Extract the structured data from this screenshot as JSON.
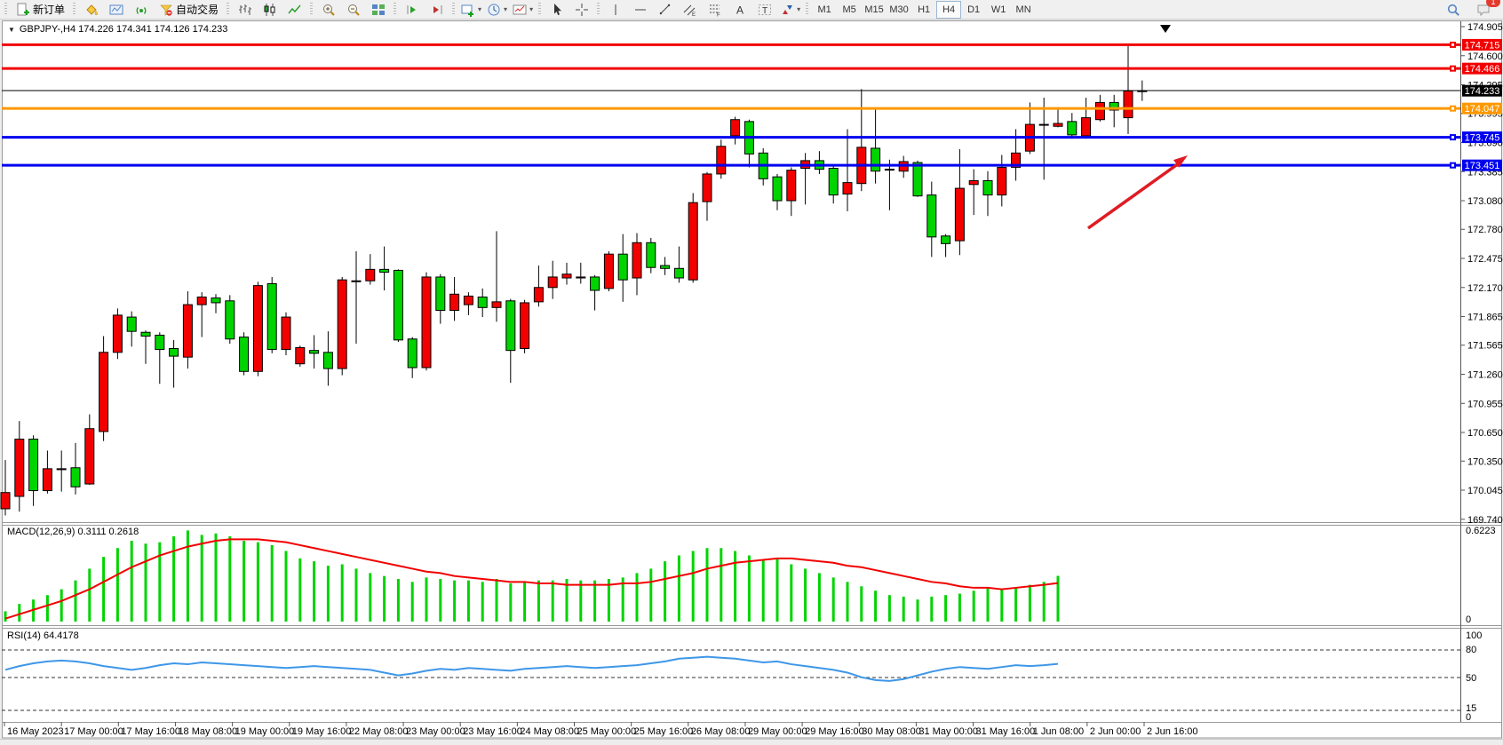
{
  "toolbar": {
    "new_order_label": "新订单",
    "auto_trading_label": "自动交易",
    "timeframes": [
      "M1",
      "M5",
      "M15",
      "M30",
      "H1",
      "H4",
      "D1",
      "W1",
      "MN"
    ],
    "active_timeframe": "H4",
    "notification_count": "1"
  },
  "chart": {
    "collapse_arrow": "▼",
    "title": "GBPJPY-,H4  174.226 174.341 174.126 174.233"
  },
  "chart_data": {
    "type": "candlestick",
    "symbol": "GBPJPY-",
    "period": "H4",
    "last_bar": {
      "open": "174.226",
      "high": "174.341",
      "low": "174.126",
      "close": "174.233"
    },
    "up_color": "#f20000",
    "down_color": "#00d400",
    "ylim": [
      169.6,
      174.905
    ],
    "price_ticks": [
      "174.905",
      "174.600",
      "174.295",
      "173.995",
      "173.690",
      "173.385",
      "173.080",
      "172.780",
      "172.475",
      "172.170",
      "171.865",
      "171.565",
      "171.260",
      "170.955",
      "170.650",
      "170.350",
      "170.045",
      "169.740"
    ],
    "time_labels": [
      "16 May 2023",
      "17 May 00:00",
      "17 May 16:00",
      "18 May 08:00",
      "19 May 00:00",
      "19 May 16:00",
      "22 May 08:00",
      "23 May 00:00",
      "23 May 16:00",
      "24 May 08:00",
      "25 May 00:00",
      "25 May 16:00",
      "26 May 08:00",
      "29 May 00:00",
      "29 May 16:00",
      "30 May 08:00",
      "31 May 00:00",
      "31 May 16:00",
      "1 Jun 08:00",
      "2 Jun 00:00",
      "2 Jun 16:00"
    ],
    "levels": [
      {
        "value": 174.715,
        "label": "174.715",
        "color": "#f20000"
      },
      {
        "value": 174.466,
        "label": "174.466",
        "color": "#f20000"
      },
      {
        "value": 174.047,
        "label": "174.047",
        "color": "#ff9800"
      },
      {
        "value": 173.745,
        "label": "173.745",
        "color": "#0000f0"
      },
      {
        "value": 173.451,
        "label": "173.451",
        "color": "#0000f0"
      }
    ],
    "current_price": {
      "value": 174.233,
      "label": "174.233",
      "color": "#000000"
    },
    "candles": [
      [
        169.85,
        170.36,
        169.78,
        170.02
      ],
      [
        169.98,
        170.77,
        169.82,
        170.58
      ],
      [
        170.58,
        170.62,
        169.88,
        170.04
      ],
      [
        170.04,
        170.46,
        170.01,
        170.27
      ],
      [
        170.26,
        170.46,
        170.03,
        170.27
      ],
      [
        170.28,
        170.54,
        170.0,
        170.08
      ],
      [
        170.11,
        170.84,
        170.1,
        170.69
      ],
      [
        170.66,
        171.66,
        170.56,
        171.49
      ],
      [
        171.49,
        171.95,
        171.42,
        171.88
      ],
      [
        171.86,
        171.92,
        171.55,
        171.71
      ],
      [
        171.7,
        171.72,
        171.37,
        171.66
      ],
      [
        171.67,
        171.7,
        171.16,
        171.52
      ],
      [
        171.53,
        171.62,
        171.12,
        171.45
      ],
      [
        171.44,
        172.13,
        171.32,
        171.99
      ],
      [
        171.99,
        172.12,
        171.65,
        172.07
      ],
      [
        172.06,
        172.1,
        171.9,
        172.01
      ],
      [
        172.03,
        172.09,
        171.58,
        171.63
      ],
      [
        171.65,
        171.7,
        171.25,
        171.29
      ],
      [
        171.29,
        172.23,
        171.24,
        172.19
      ],
      [
        172.21,
        172.28,
        171.48,
        171.52
      ],
      [
        171.52,
        171.91,
        171.46,
        171.86
      ],
      [
        171.37,
        171.56,
        171.34,
        171.54
      ],
      [
        171.51,
        171.67,
        171.32,
        171.48
      ],
      [
        171.49,
        171.71,
        171.14,
        171.32
      ],
      [
        171.32,
        172.28,
        171.25,
        172.25
      ],
      [
        172.24,
        172.55,
        171.58,
        172.24
      ],
      [
        172.24,
        172.52,
        172.2,
        172.36
      ],
      [
        172.36,
        172.6,
        172.14,
        172.33
      ],
      [
        172.35,
        172.36,
        171.6,
        171.62
      ],
      [
        171.63,
        171.65,
        171.22,
        171.33
      ],
      [
        171.33,
        172.33,
        171.3,
        172.28
      ],
      [
        172.28,
        172.31,
        171.79,
        171.93
      ],
      [
        171.93,
        172.28,
        171.82,
        172.1
      ],
      [
        171.99,
        172.12,
        171.88,
        172.08
      ],
      [
        172.07,
        172.16,
        171.86,
        171.96
      ],
      [
        171.96,
        172.76,
        171.81,
        172.02
      ],
      [
        172.03,
        172.05,
        171.17,
        171.51
      ],
      [
        171.53,
        172.04,
        171.48,
        172.01
      ],
      [
        172.02,
        172.4,
        171.97,
        172.17
      ],
      [
        172.17,
        172.45,
        172.05,
        172.28
      ],
      [
        172.27,
        172.43,
        172.2,
        172.31
      ],
      [
        172.27,
        172.43,
        172.21,
        172.28
      ],
      [
        172.28,
        172.3,
        171.93,
        172.14
      ],
      [
        172.16,
        172.55,
        172.13,
        172.52
      ],
      [
        172.52,
        172.73,
        172.02,
        172.25
      ],
      [
        172.27,
        172.74,
        172.09,
        172.64
      ],
      [
        172.64,
        172.69,
        172.32,
        172.38
      ],
      [
        172.4,
        172.49,
        172.3,
        172.37
      ],
      [
        172.37,
        172.6,
        172.22,
        172.27
      ],
      [
        172.25,
        173.16,
        172.22,
        173.06
      ],
      [
        173.07,
        173.38,
        172.87,
        173.36
      ],
      [
        173.36,
        173.72,
        173.31,
        173.65
      ],
      [
        173.76,
        173.96,
        173.67,
        173.93
      ],
      [
        173.91,
        173.93,
        173.43,
        173.57
      ],
      [
        173.58,
        173.63,
        173.24,
        173.31
      ],
      [
        173.33,
        173.36,
        172.98,
        173.08
      ],
      [
        173.08,
        173.43,
        172.92,
        173.4
      ],
      [
        173.42,
        173.58,
        173.04,
        173.5
      ],
      [
        173.5,
        173.6,
        173.36,
        173.41
      ],
      [
        173.42,
        173.44,
        173.05,
        173.14
      ],
      [
        173.15,
        173.83,
        172.97,
        173.27
      ],
      [
        173.26,
        174.25,
        173.18,
        173.64
      ],
      [
        173.63,
        174.05,
        173.26,
        173.39
      ],
      [
        173.41,
        173.51,
        172.98,
        173.41
      ],
      [
        173.39,
        173.55,
        173.32,
        173.49
      ],
      [
        173.48,
        173.5,
        173.12,
        173.13
      ],
      [
        173.14,
        173.28,
        172.49,
        172.7
      ],
      [
        172.71,
        172.73,
        172.49,
        172.63
      ],
      [
        172.66,
        173.62,
        172.51,
        173.21
      ],
      [
        173.25,
        173.41,
        172.93,
        173.29
      ],
      [
        173.29,
        173.39,
        172.92,
        173.14
      ],
      [
        173.14,
        173.56,
        173.02,
        173.43
      ],
      [
        173.43,
        173.83,
        173.29,
        173.58
      ],
      [
        173.6,
        174.11,
        173.57,
        173.88
      ],
      [
        173.88,
        174.16,
        173.3,
        173.88
      ],
      [
        173.86,
        174.06,
        173.85,
        173.89
      ],
      [
        173.91,
        174.0,
        173.73,
        173.77
      ],
      [
        173.76,
        174.16,
        173.73,
        173.95
      ],
      [
        173.93,
        174.19,
        173.91,
        174.11
      ],
      [
        174.11,
        174.19,
        173.85,
        174.03
      ],
      [
        173.95,
        174.7,
        173.78,
        174.23
      ],
      [
        174.226,
        174.341,
        174.126,
        174.233
      ]
    ],
    "indicators": {
      "macd": {
        "label": "MACD(12,26,9) 0.3111 0.2618",
        "params": "12,26,9",
        "main_value": "0.3111",
        "signal_value": "0.2618",
        "scale_max": "0.6223",
        "scale_min": "0",
        "histogram_color": "#00d400",
        "signal_color": "#f20000",
        "histogram": [
          0.07,
          0.12,
          0.15,
          0.18,
          0.22,
          0.28,
          0.36,
          0.44,
          0.5,
          0.55,
          0.53,
          0.54,
          0.58,
          0.62,
          0.59,
          0.6,
          0.58,
          0.55,
          0.54,
          0.52,
          0.48,
          0.43,
          0.41,
          0.38,
          0.39,
          0.36,
          0.33,
          0.31,
          0.29,
          0.27,
          0.3,
          0.29,
          0.28,
          0.28,
          0.27,
          0.29,
          0.26,
          0.27,
          0.28,
          0.28,
          0.29,
          0.28,
          0.28,
          0.29,
          0.3,
          0.33,
          0.36,
          0.41,
          0.45,
          0.48,
          0.5,
          0.5,
          0.48,
          0.45,
          0.42,
          0.43,
          0.39,
          0.36,
          0.33,
          0.3,
          0.27,
          0.24,
          0.21,
          0.18,
          0.17,
          0.15,
          0.17,
          0.18,
          0.19,
          0.21,
          0.23,
          0.22,
          0.23,
          0.25,
          0.27,
          0.3111
        ],
        "signal": [
          0.02,
          0.05,
          0.08,
          0.11,
          0.14,
          0.18,
          0.22,
          0.27,
          0.32,
          0.37,
          0.41,
          0.45,
          0.48,
          0.51,
          0.53,
          0.55,
          0.56,
          0.56,
          0.56,
          0.55,
          0.54,
          0.52,
          0.5,
          0.48,
          0.46,
          0.44,
          0.42,
          0.4,
          0.38,
          0.36,
          0.34,
          0.33,
          0.31,
          0.3,
          0.29,
          0.28,
          0.27,
          0.27,
          0.26,
          0.26,
          0.25,
          0.25,
          0.25,
          0.25,
          0.26,
          0.26,
          0.27,
          0.29,
          0.31,
          0.33,
          0.36,
          0.38,
          0.4,
          0.41,
          0.42,
          0.43,
          0.43,
          0.42,
          0.41,
          0.4,
          0.38,
          0.37,
          0.35,
          0.33,
          0.31,
          0.29,
          0.27,
          0.26,
          0.24,
          0.23,
          0.23,
          0.22,
          0.23,
          0.24,
          0.25,
          0.2618
        ]
      },
      "rsi": {
        "label": "RSI(14) 64.4178",
        "period": "14",
        "value": "64.4178",
        "line_color": "#3e97e8",
        "ticks": [
          "100",
          "80",
          "50",
          "15",
          "0"
        ],
        "dashed_levels": [
          80,
          50,
          15
        ],
        "values": [
          58,
          62,
          65,
          67,
          68,
          67,
          65,
          62,
          60,
          58,
          60,
          63,
          65,
          64,
          66,
          65,
          64,
          63,
          62,
          61,
          60,
          61,
          62,
          61,
          60,
          59,
          58,
          55,
          52,
          54,
          57,
          59,
          58,
          60,
          59,
          58,
          57,
          59,
          60,
          61,
          62,
          61,
          60,
          61,
          62,
          63,
          65,
          67,
          70,
          71,
          72,
          71,
          70,
          68,
          66,
          67,
          64,
          62,
          60,
          58,
          55,
          50,
          47,
          46,
          48,
          52,
          56,
          59,
          61,
          60,
          59,
          61,
          63,
          62,
          63,
          64.4178
        ]
      }
    },
    "annotation_arrow": {
      "color": "#e01b24"
    }
  }
}
